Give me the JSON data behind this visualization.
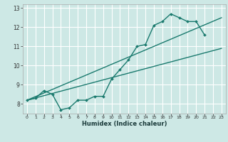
{
  "title": "",
  "xlabel": "Humidex (Indice chaleur)",
  "bg_color": "#cde8e5",
  "grid_color": "#ffffff",
  "line_color": "#1a7a6e",
  "xlim": [
    -0.5,
    23.5
  ],
  "ylim": [
    7.5,
    13.2
  ],
  "xticks": [
    0,
    1,
    2,
    3,
    4,
    5,
    6,
    7,
    8,
    9,
    10,
    11,
    12,
    13,
    14,
    15,
    16,
    17,
    18,
    19,
    20,
    21,
    22,
    23
  ],
  "yticks": [
    8,
    9,
    10,
    11,
    12,
    13
  ],
  "line1_x": [
    0,
    1,
    2,
    3,
    4,
    5,
    6,
    7,
    8,
    9,
    10,
    11,
    12,
    13,
    14,
    15,
    16,
    17,
    18,
    19,
    20,
    21
  ],
  "line1_y": [
    8.2,
    8.3,
    8.7,
    8.5,
    7.7,
    7.8,
    8.2,
    8.2,
    8.4,
    8.4,
    9.3,
    9.8,
    10.3,
    11.0,
    11.1,
    12.1,
    12.3,
    12.7,
    12.5,
    12.3,
    12.3,
    11.6
  ],
  "line2_x": [
    0,
    23
  ],
  "line2_y": [
    8.2,
    10.9
  ],
  "line3_x": [
    0,
    23
  ],
  "line3_y": [
    8.2,
    12.5
  ]
}
